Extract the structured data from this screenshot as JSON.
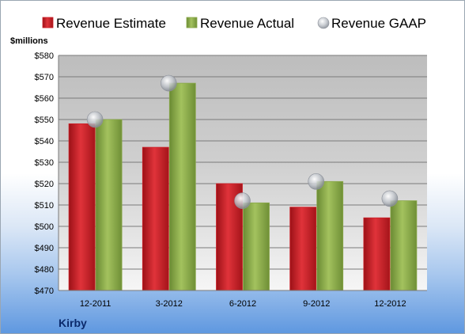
{
  "company": "Kirby",
  "colors": {
    "estimate": "#cc1f27",
    "actual": "#8aa84a",
    "gaap": "#b5b9c0"
  },
  "chart_data": {
    "type": "bar",
    "ylabel": "$millions",
    "ylim": [
      470,
      580
    ],
    "yticks": [
      470,
      480,
      490,
      500,
      510,
      520,
      530,
      540,
      550,
      560,
      570,
      580
    ],
    "y_tick_labels": [
      "$470",
      "$480",
      "$490",
      "$500",
      "$510",
      "$520",
      "$530",
      "$540",
      "$550",
      "$560",
      "$570",
      "$580"
    ],
    "grid": true,
    "legend": "top",
    "categories": [
      "12-2011",
      "3-2012",
      "6-2012",
      "9-2012",
      "12-2012"
    ],
    "series": [
      {
        "name": "Revenue Estimate",
        "kind": "bar",
        "values": [
          548,
          537,
          520,
          509,
          504
        ]
      },
      {
        "name": "Revenue Actual",
        "kind": "bar",
        "values": [
          550,
          567,
          511,
          521,
          512
        ]
      },
      {
        "name": "Revenue GAAP",
        "kind": "marker",
        "values": [
          550,
          567,
          512,
          521,
          513
        ]
      }
    ]
  }
}
